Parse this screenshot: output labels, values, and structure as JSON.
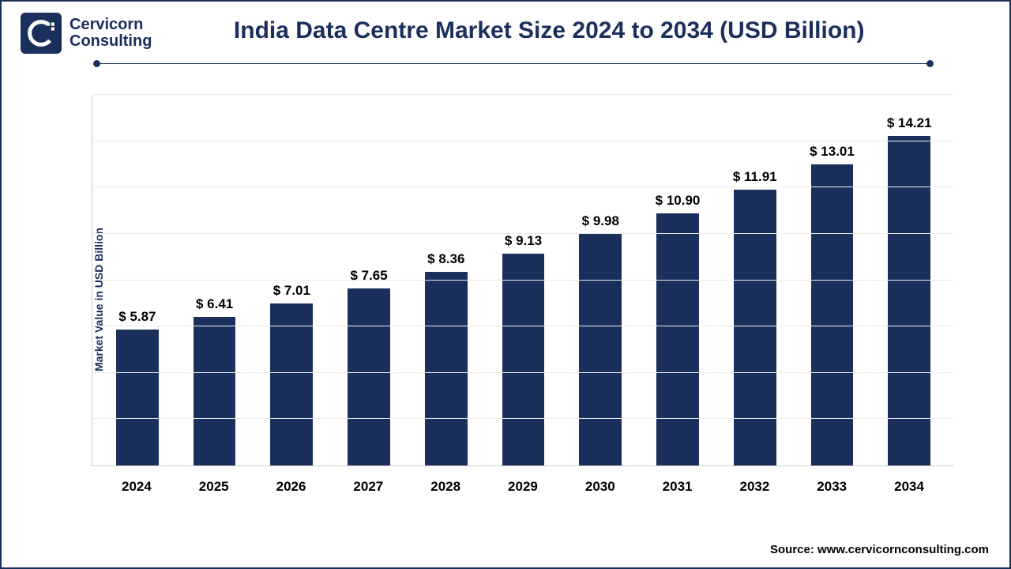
{
  "brand": {
    "line1": "Cervicorn",
    "line2": "Consulting",
    "logo_bg": "#1b2f5c",
    "logo_fg": "#ffffff"
  },
  "chart": {
    "type": "bar",
    "title": "India Data Centre Market Size 2024 to 2034 (USD Billion)",
    "title_fontsize": 30,
    "ylabel": "Market Value in USD Billion",
    "label_fontsize": 14,
    "value_prefix": "$ ",
    "value_fontsize": 17,
    "xlabel_fontsize": 17,
    "categories": [
      "2024",
      "2025",
      "2026",
      "2027",
      "2028",
      "2029",
      "2030",
      "2031",
      "2032",
      "2033",
      "2034"
    ],
    "values": [
      5.87,
      6.41,
      7.01,
      7.65,
      8.36,
      9.13,
      9.98,
      10.9,
      11.91,
      13.01,
      14.21
    ],
    "value_decimals": 2,
    "bar_color": "#1b2f5c",
    "bar_width": 0.55,
    "ylim": [
      0,
      16
    ],
    "grid_steps": 8,
    "background_color": "#ffffff",
    "grid_color": "#ececec",
    "axis_color": "#cfcfcf",
    "accent_color": "#1b2f5c",
    "text_color": "#000000",
    "font_family": "Arial"
  },
  "source": {
    "label": "Source:",
    "text": "www.cervicornconsulting.com"
  }
}
